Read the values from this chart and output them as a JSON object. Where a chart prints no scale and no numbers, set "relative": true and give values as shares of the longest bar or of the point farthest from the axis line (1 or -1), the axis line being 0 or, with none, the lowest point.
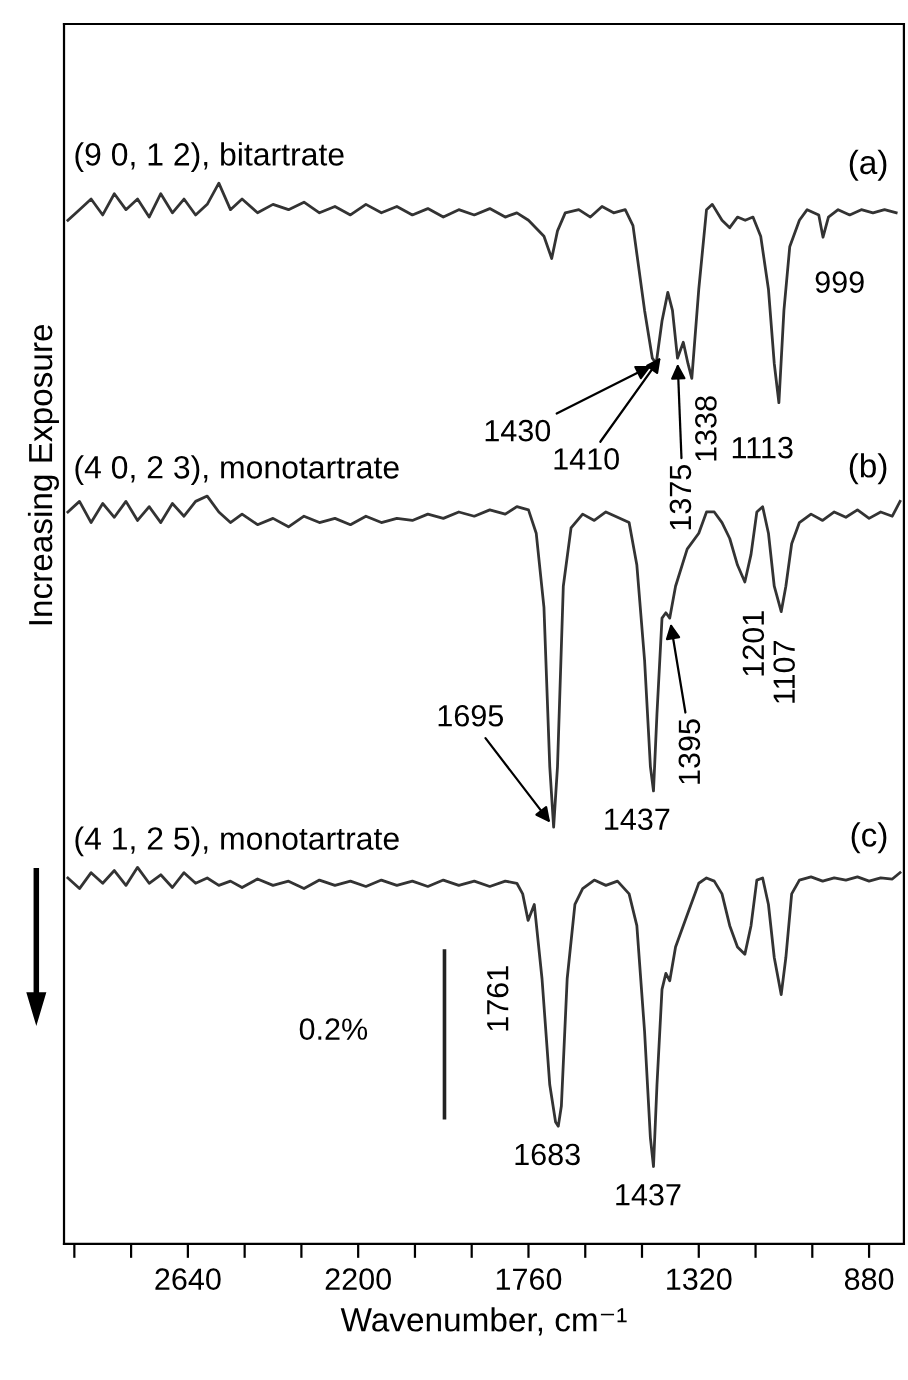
{
  "chart_data": {
    "type": "line",
    "relative": true,
    "xlabel": "Wavenumber, cm⁻¹",
    "ylabel": "Increasing Exposure",
    "xlim": [
      2960,
      790
    ],
    "xticks": [
      {
        "value": 2933.3,
        "label": null
      },
      {
        "value": 2786.7,
        "label": null
      },
      2640,
      {
        "value": 2493.3,
        "label": null
      },
      {
        "value": 2346.7,
        "label": null
      },
      2200,
      {
        "value": 2053.3,
        "label": null
      },
      {
        "value": 1906.7,
        "label": null
      },
      1760,
      {
        "value": 1613.3,
        "label": null
      },
      {
        "value": 1466.7,
        "label": null
      },
      1320,
      {
        "value": 1173.3,
        "label": null
      },
      {
        "value": 1026.7,
        "label": null
      },
      880
    ],
    "tick_labels": "x",
    "grid": false,
    "legend": false,
    "marker": "none",
    "line_style": "solid",
    "series": [
      {
        "name": "(9 0, 1 2), bitartrate",
        "color": "#333333",
        "x": [
          2950,
          2920,
          2890,
          2860,
          2830,
          2800,
          2770,
          2740,
          2710,
          2680,
          2650,
          2620,
          2590,
          2560,
          2530,
          2500,
          2460,
          2420,
          2380,
          2340,
          2300,
          2260,
          2220,
          2180,
          2140,
          2100,
          2060,
          2020,
          1980,
          1940,
          1900,
          1860,
          1820,
          1790,
          1760,
          1720,
          1700,
          1685,
          1665,
          1630,
          1600,
          1570,
          1540,
          1510,
          1490,
          1460,
          1440,
          1430,
          1415,
          1400,
          1388,
          1375,
          1360,
          1348,
          1338,
          1320,
          1300,
          1285,
          1260,
          1240,
          1220,
          1200,
          1180,
          1160,
          1140,
          1125,
          1113,
          1100,
          1085,
          1060,
          1040,
          1010,
          999,
          985,
          960,
          930,
          900,
          870,
          840,
          810
        ],
        "values": [
          0.965,
          0.975,
          0.985,
          0.97,
          0.99,
          0.975,
          0.985,
          0.968,
          0.99,
          0.972,
          0.985,
          0.97,
          0.98,
          1,
          0.975,
          0.985,
          0.972,
          0.98,
          0.975,
          0.982,
          0.972,
          0.978,
          0.97,
          0.98,
          0.972,
          0.978,
          0.97,
          0.976,
          0.968,
          0.975,
          0.97,
          0.976,
          0.968,
          0.972,
          0.965,
          0.95,
          0.929,
          0.955,
          0.972,
          0.975,
          0.968,
          0.978,
          0.972,
          0.975,
          0.96,
          0.88,
          0.835,
          0.83,
          0.87,
          0.897,
          0.88,
          0.835,
          0.85,
          0.83,
          0.816,
          0.9,
          0.975,
          0.98,
          0.965,
          0.958,
          0.968,
          0.965,
          0.968,
          0.95,
          0.9,
          0.83,
          0.793,
          0.88,
          0.94,
          0.965,
          0.975,
          0.97,
          0.949,
          0.968,
          0.975,
          0.97,
          0.975,
          0.972,
          0.975,
          0.972
        ]
      },
      {
        "name": "(4 0, 2 3), monotartrate",
        "color": "#333333",
        "x": [
          2950,
          2920,
          2890,
          2860,
          2830,
          2800,
          2770,
          2740,
          2710,
          2680,
          2650,
          2620,
          2590,
          2560,
          2530,
          2500,
          2460,
          2420,
          2380,
          2340,
          2300,
          2260,
          2220,
          2180,
          2140,
          2100,
          2060,
          2020,
          1980,
          1940,
          1900,
          1860,
          1820,
          1790,
          1760,
          1740,
          1720,
          1705,
          1695,
          1685,
          1670,
          1650,
          1620,
          1590,
          1560,
          1530,
          1500,
          1480,
          1460,
          1445,
          1437,
          1428,
          1415,
          1405,
          1395,
          1380,
          1350,
          1320,
          1300,
          1280,
          1260,
          1240,
          1220,
          1201,
          1185,
          1170,
          1155,
          1140,
          1125,
          1107,
          1095,
          1080,
          1060,
          1030,
          1000,
          970,
          940,
          910,
          880,
          850,
          820,
          800
        ],
        "values": [
          0.69,
          0.7,
          0.68,
          0.698,
          0.685,
          0.7,
          0.682,
          0.695,
          0.68,
          0.698,
          0.686,
          0.7,
          0.705,
          0.69,
          0.68,
          0.688,
          0.678,
          0.684,
          0.676,
          0.686,
          0.68,
          0.684,
          0.678,
          0.686,
          0.68,
          0.684,
          0.682,
          0.688,
          0.684,
          0.69,
          0.686,
          0.692,
          0.688,
          0.695,
          0.692,
          0.67,
          0.6,
          0.45,
          0.393,
          0.45,
          0.62,
          0.675,
          0.688,
          0.682,
          0.69,
          0.685,
          0.68,
          0.64,
          0.55,
          0.45,
          0.427,
          0.5,
          0.59,
          0.595,
          0.59,
          0.62,
          0.655,
          0.67,
          0.69,
          0.69,
          0.68,
          0.665,
          0.64,
          0.624,
          0.65,
          0.69,
          0.695,
          0.67,
          0.62,
          0.596,
          0.62,
          0.66,
          0.68,
          0.688,
          0.682,
          0.69,
          0.685,
          0.692,
          0.684,
          0.69,
          0.686,
          0.7
        ]
      },
      {
        "name": "(4 1, 2 5), monotartrate",
        "color": "#333333",
        "x": [
          2950,
          2920,
          2890,
          2860,
          2830,
          2800,
          2770,
          2740,
          2710,
          2680,
          2650,
          2620,
          2590,
          2560,
          2530,
          2500,
          2460,
          2420,
          2380,
          2340,
          2300,
          2260,
          2220,
          2180,
          2140,
          2100,
          2060,
          2020,
          1980,
          1940,
          1900,
          1860,
          1820,
          1790,
          1775,
          1761,
          1745,
          1725,
          1705,
          1690,
          1683,
          1675,
          1660,
          1640,
          1620,
          1590,
          1560,
          1530,
          1500,
          1480,
          1460,
          1445,
          1437,
          1428,
          1415,
          1405,
          1395,
          1380,
          1350,
          1320,
          1300,
          1280,
          1260,
          1240,
          1220,
          1201,
          1185,
          1170,
          1155,
          1140,
          1125,
          1107,
          1095,
          1080,
          1060,
          1030,
          1000,
          970,
          940,
          910,
          880,
          850,
          820,
          800
        ],
        "values": [
          0.345,
          0.335,
          0.35,
          0.34,
          0.352,
          0.338,
          0.355,
          0.34,
          0.348,
          0.336,
          0.35,
          0.34,
          0.345,
          0.338,
          0.342,
          0.336,
          0.344,
          0.338,
          0.342,
          0.335,
          0.343,
          0.338,
          0.342,
          0.337,
          0.343,
          0.338,
          0.342,
          0.337,
          0.343,
          0.338,
          0.342,
          0.337,
          0.342,
          0.34,
          0.33,
          0.305,
          0.32,
          0.25,
          0.15,
          0.115,
          0.111,
          0.13,
          0.25,
          0.32,
          0.335,
          0.343,
          0.338,
          0.342,
          0.33,
          0.3,
          0.2,
          0.1,
          0.073,
          0.15,
          0.24,
          0.255,
          0.248,
          0.28,
          0.31,
          0.34,
          0.345,
          0.342,
          0.33,
          0.3,
          0.28,
          0.273,
          0.3,
          0.343,
          0.345,
          0.32,
          0.27,
          0.235,
          0.27,
          0.33,
          0.343,
          0.346,
          0.342,
          0.345,
          0.343,
          0.346,
          0.342,
          0.345,
          0.344,
          0.35
        ]
      },
      {
        "color": "#222222",
        "x": [
          1977,
          1977
        ],
        "values": [
          0.119,
          0.276
        ]
      }
    ],
    "annotations": [
      {
        "text": "(a)",
        "x": 830,
        "y": 0.976
      },
      {
        "text": "999",
        "x": 999,
        "y": 0.949
      },
      {
        "text": "1430",
        "x": 1430,
        "y": 0.83
      },
      {
        "text": "1410",
        "x": 1410,
        "y": 0.84
      },
      {
        "text": "1375",
        "x": 1375,
        "y": 0.835
      },
      {
        "text": "1338",
        "x": 1338,
        "y": 0.816
      },
      {
        "text": "1113",
        "x": 1113,
        "y": 0.793
      },
      {
        "text": "(b)",
        "x": 830,
        "y": 0.69
      },
      {
        "text": "1695",
        "x": 1695,
        "y": 0.393
      },
      {
        "text": "1437",
        "x": 1437,
        "y": 0.427
      },
      {
        "text": "1395",
        "x": 1395,
        "y": 0.59
      },
      {
        "text": "1201",
        "x": 1201,
        "y": 0.624
      },
      {
        "text": "1107",
        "x": 1107,
        "y": 0.596
      },
      {
        "text": "(c)",
        "x": 830,
        "y": 0.342
      },
      {
        "text": "1761",
        "x": 1761,
        "y": 0.305
      },
      {
        "text": "1683",
        "x": 1683,
        "y": 0.111
      },
      {
        "text": "1437",
        "x": 1437,
        "y": 0.073
      },
      {
        "text": "0.2%",
        "x": 1977,
        "y": 0.2
      }
    ]
  }
}
